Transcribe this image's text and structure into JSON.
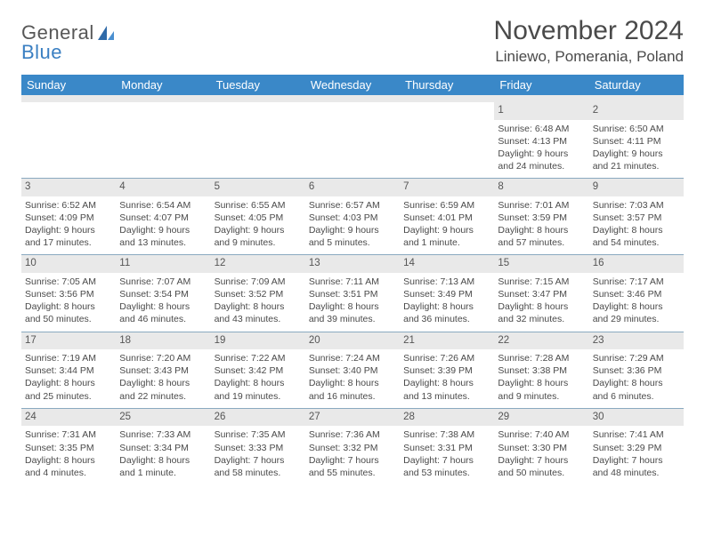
{
  "logo": {
    "text1": "General",
    "text2": "Blue"
  },
  "title": "November 2024",
  "location": "Liniewo, Pomerania, Poland",
  "colors": {
    "header_bg": "#3a88c8",
    "header_fg": "#ffffff",
    "daynum_bg": "#e9e9e9",
    "row_border": "#8aa9c0",
    "logo_blue": "#3a7fc2",
    "logo_gray": "#575757"
  },
  "font": {
    "base_family": "Arial",
    "title_size": 30,
    "location_size": 17,
    "header_size": 13,
    "cell_size": 10.5
  },
  "columns": [
    "Sunday",
    "Monday",
    "Tuesday",
    "Wednesday",
    "Thursday",
    "Friday",
    "Saturday"
  ],
  "weeks": [
    [
      {
        "empty": true
      },
      {
        "empty": true
      },
      {
        "empty": true
      },
      {
        "empty": true
      },
      {
        "empty": true
      },
      {
        "day": "1",
        "sunrise": "Sunrise: 6:48 AM",
        "sunset": "Sunset: 4:13 PM",
        "daylight1": "Daylight: 9 hours",
        "daylight2": "and 24 minutes."
      },
      {
        "day": "2",
        "sunrise": "Sunrise: 6:50 AM",
        "sunset": "Sunset: 4:11 PM",
        "daylight1": "Daylight: 9 hours",
        "daylight2": "and 21 minutes."
      }
    ],
    [
      {
        "day": "3",
        "sunrise": "Sunrise: 6:52 AM",
        "sunset": "Sunset: 4:09 PM",
        "daylight1": "Daylight: 9 hours",
        "daylight2": "and 17 minutes."
      },
      {
        "day": "4",
        "sunrise": "Sunrise: 6:54 AM",
        "sunset": "Sunset: 4:07 PM",
        "daylight1": "Daylight: 9 hours",
        "daylight2": "and 13 minutes."
      },
      {
        "day": "5",
        "sunrise": "Sunrise: 6:55 AM",
        "sunset": "Sunset: 4:05 PM",
        "daylight1": "Daylight: 9 hours",
        "daylight2": "and 9 minutes."
      },
      {
        "day": "6",
        "sunrise": "Sunrise: 6:57 AM",
        "sunset": "Sunset: 4:03 PM",
        "daylight1": "Daylight: 9 hours",
        "daylight2": "and 5 minutes."
      },
      {
        "day": "7",
        "sunrise": "Sunrise: 6:59 AM",
        "sunset": "Sunset: 4:01 PM",
        "daylight1": "Daylight: 9 hours",
        "daylight2": "and 1 minute."
      },
      {
        "day": "8",
        "sunrise": "Sunrise: 7:01 AM",
        "sunset": "Sunset: 3:59 PM",
        "daylight1": "Daylight: 8 hours",
        "daylight2": "and 57 minutes."
      },
      {
        "day": "9",
        "sunrise": "Sunrise: 7:03 AM",
        "sunset": "Sunset: 3:57 PM",
        "daylight1": "Daylight: 8 hours",
        "daylight2": "and 54 minutes."
      }
    ],
    [
      {
        "day": "10",
        "sunrise": "Sunrise: 7:05 AM",
        "sunset": "Sunset: 3:56 PM",
        "daylight1": "Daylight: 8 hours",
        "daylight2": "and 50 minutes."
      },
      {
        "day": "11",
        "sunrise": "Sunrise: 7:07 AM",
        "sunset": "Sunset: 3:54 PM",
        "daylight1": "Daylight: 8 hours",
        "daylight2": "and 46 minutes."
      },
      {
        "day": "12",
        "sunrise": "Sunrise: 7:09 AM",
        "sunset": "Sunset: 3:52 PM",
        "daylight1": "Daylight: 8 hours",
        "daylight2": "and 43 minutes."
      },
      {
        "day": "13",
        "sunrise": "Sunrise: 7:11 AM",
        "sunset": "Sunset: 3:51 PM",
        "daylight1": "Daylight: 8 hours",
        "daylight2": "and 39 minutes."
      },
      {
        "day": "14",
        "sunrise": "Sunrise: 7:13 AM",
        "sunset": "Sunset: 3:49 PM",
        "daylight1": "Daylight: 8 hours",
        "daylight2": "and 36 minutes."
      },
      {
        "day": "15",
        "sunrise": "Sunrise: 7:15 AM",
        "sunset": "Sunset: 3:47 PM",
        "daylight1": "Daylight: 8 hours",
        "daylight2": "and 32 minutes."
      },
      {
        "day": "16",
        "sunrise": "Sunrise: 7:17 AM",
        "sunset": "Sunset: 3:46 PM",
        "daylight1": "Daylight: 8 hours",
        "daylight2": "and 29 minutes."
      }
    ],
    [
      {
        "day": "17",
        "sunrise": "Sunrise: 7:19 AM",
        "sunset": "Sunset: 3:44 PM",
        "daylight1": "Daylight: 8 hours",
        "daylight2": "and 25 minutes."
      },
      {
        "day": "18",
        "sunrise": "Sunrise: 7:20 AM",
        "sunset": "Sunset: 3:43 PM",
        "daylight1": "Daylight: 8 hours",
        "daylight2": "and 22 minutes."
      },
      {
        "day": "19",
        "sunrise": "Sunrise: 7:22 AM",
        "sunset": "Sunset: 3:42 PM",
        "daylight1": "Daylight: 8 hours",
        "daylight2": "and 19 minutes."
      },
      {
        "day": "20",
        "sunrise": "Sunrise: 7:24 AM",
        "sunset": "Sunset: 3:40 PM",
        "daylight1": "Daylight: 8 hours",
        "daylight2": "and 16 minutes."
      },
      {
        "day": "21",
        "sunrise": "Sunrise: 7:26 AM",
        "sunset": "Sunset: 3:39 PM",
        "daylight1": "Daylight: 8 hours",
        "daylight2": "and 13 minutes."
      },
      {
        "day": "22",
        "sunrise": "Sunrise: 7:28 AM",
        "sunset": "Sunset: 3:38 PM",
        "daylight1": "Daylight: 8 hours",
        "daylight2": "and 9 minutes."
      },
      {
        "day": "23",
        "sunrise": "Sunrise: 7:29 AM",
        "sunset": "Sunset: 3:36 PM",
        "daylight1": "Daylight: 8 hours",
        "daylight2": "and 6 minutes."
      }
    ],
    [
      {
        "day": "24",
        "sunrise": "Sunrise: 7:31 AM",
        "sunset": "Sunset: 3:35 PM",
        "daylight1": "Daylight: 8 hours",
        "daylight2": "and 4 minutes."
      },
      {
        "day": "25",
        "sunrise": "Sunrise: 7:33 AM",
        "sunset": "Sunset: 3:34 PM",
        "daylight1": "Daylight: 8 hours",
        "daylight2": "and 1 minute."
      },
      {
        "day": "26",
        "sunrise": "Sunrise: 7:35 AM",
        "sunset": "Sunset: 3:33 PM",
        "daylight1": "Daylight: 7 hours",
        "daylight2": "and 58 minutes."
      },
      {
        "day": "27",
        "sunrise": "Sunrise: 7:36 AM",
        "sunset": "Sunset: 3:32 PM",
        "daylight1": "Daylight: 7 hours",
        "daylight2": "and 55 minutes."
      },
      {
        "day": "28",
        "sunrise": "Sunrise: 7:38 AM",
        "sunset": "Sunset: 3:31 PM",
        "daylight1": "Daylight: 7 hours",
        "daylight2": "and 53 minutes."
      },
      {
        "day": "29",
        "sunrise": "Sunrise: 7:40 AM",
        "sunset": "Sunset: 3:30 PM",
        "daylight1": "Daylight: 7 hours",
        "daylight2": "and 50 minutes."
      },
      {
        "day": "30",
        "sunrise": "Sunrise: 7:41 AM",
        "sunset": "Sunset: 3:29 PM",
        "daylight1": "Daylight: 7 hours",
        "daylight2": "and 48 minutes."
      }
    ]
  ]
}
